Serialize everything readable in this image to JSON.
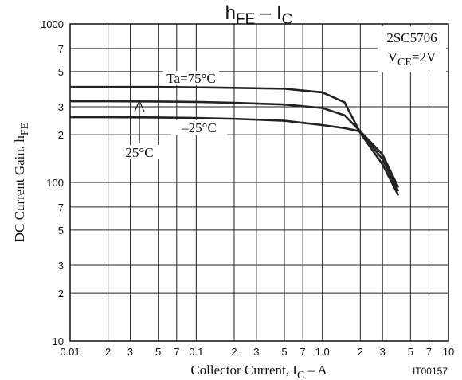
{
  "chart_data": {
    "type": "line",
    "title": [
      "h",
      "FE",
      " – I",
      "C"
    ],
    "x_label": [
      "Collector Current, I",
      "C",
      "  –  A"
    ],
    "y_label": [
      "DC Current Gain, h",
      "FE"
    ],
    "annotations": {
      "part": "2SC5706",
      "condition": [
        "V",
        "CE",
        "=2V"
      ],
      "code": "IT00157"
    },
    "log_x": true,
    "log_y": true,
    "grid": true,
    "x": [
      0.01,
      0.02,
      0.05,
      0.1,
      0.2,
      0.5,
      1,
      1.5,
      2,
      3,
      4
    ],
    "series": [
      {
        "name": "Ta=75°C",
        "color": "#222222",
        "values": [
          400,
          400,
          400,
          398,
          395,
          390,
          370,
          320,
          205,
          130,
          83
        ]
      },
      {
        "name": "25°C",
        "color": "#222222",
        "values": [
          325,
          325,
          324,
          322,
          318,
          310,
          295,
          265,
          210,
          140,
          88
        ]
      },
      {
        "name": "–25°C",
        "color": "#222222",
        "values": [
          258,
          258,
          257,
          255,
          252,
          245,
          230,
          220,
          210,
          150,
          93
        ]
      }
    ],
    "xlim": [
      0.01,
      10
    ],
    "xticks": [
      0.01,
      {
        "value": 0.02,
        "label": "2"
      },
      {
        "value": 0.03,
        "label": "3"
      },
      {
        "value": 0.05,
        "label": "5"
      },
      {
        "value": 0.07,
        "label": "7"
      },
      0.1,
      {
        "value": 0.2,
        "label": "2"
      },
      {
        "value": 0.3,
        "label": "3"
      },
      {
        "value": 0.5,
        "label": "5"
      },
      {
        "value": 0.7,
        "label": "7"
      },
      {
        "value": 1,
        "label": "1.0"
      },
      {
        "value": 2,
        "label": "2"
      },
      {
        "value": 3,
        "label": "3"
      },
      {
        "value": 5,
        "label": "5"
      },
      {
        "value": 7,
        "label": "7"
      },
      10
    ],
    "ylim": [
      10,
      1000
    ],
    "yticks": [
      10,
      {
        "value": 20,
        "label": "2"
      },
      {
        "value": 30,
        "label": "3"
      },
      {
        "value": 50,
        "label": "5"
      },
      {
        "value": 70,
        "label": "7"
      },
      100,
      {
        "value": 200,
        "label": "2"
      },
      {
        "value": 300,
        "label": "3"
      },
      {
        "value": 500,
        "label": "5"
      },
      {
        "value": 700,
        "label": "7"
      },
      1000
    ]
  }
}
